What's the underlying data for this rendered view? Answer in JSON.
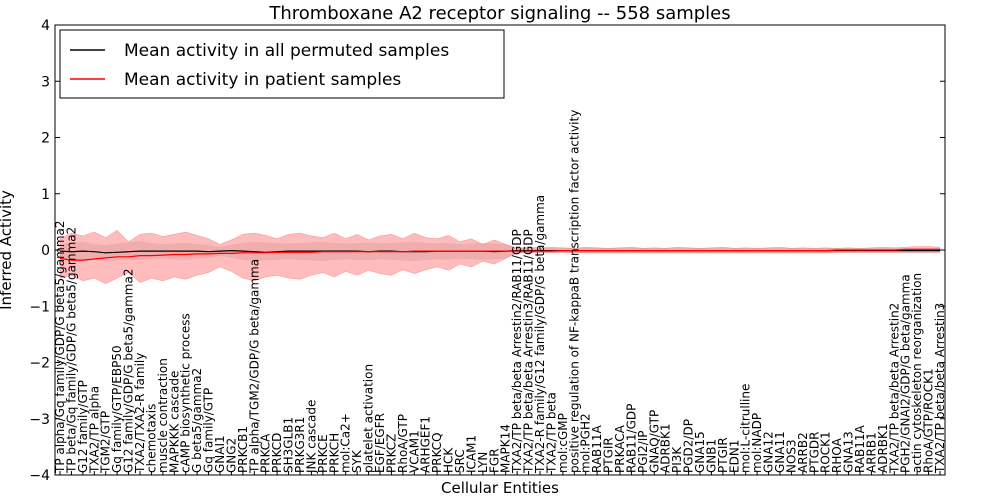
{
  "chart_data": {
    "type": "line",
    "title": "Thromboxane A2 receptor signaling -- 558 samples",
    "xlabel": "Cellular Entities",
    "ylabel": "Inferred Activity",
    "ylim": [
      -4,
      4
    ],
    "y_ticks": [
      -4,
      -3,
      -2,
      -1,
      0,
      1,
      2,
      3,
      4
    ],
    "grid": false,
    "legend_position": "top-left",
    "categories": [
      "TP alpha/Gq family/GDP/G beta5/gamma2",
      "TP beta/Gq family/GDP/G beta5/gamma2",
      "G12 family/GTP",
      "TXA2/TP alpha",
      "TGM2/GTP",
      "Gq family/GTP/EBP50",
      "G12 family/GDP/G beta5/gamma2",
      "TXA2/TXA2-R family",
      "chemotaxis",
      "muscle contraction",
      "MAPKKK cascade",
      "cAMP biosynthetic process",
      "G beta5/gamma2",
      "Gq family/GTP",
      "GNAI1",
      "GNG2",
      "PRKCB1",
      "TP alpha/TGM2/GDP/G beta/gamma",
      "PRKCA",
      "PRKCD",
      "SH3GLB1",
      "PRKG3R1",
      "JNK cascade",
      "PRKCE",
      "PRKCH",
      "mol:Ca2+",
      "SYK",
      "platelet activation",
      "EGF/EGFR",
      "PRKCZ",
      "RhoA/GTP",
      "VCAM1",
      "ARHGEF1",
      "PRKCQ",
      "HCK",
      "SRC",
      "ICAM1",
      "LYN",
      "FGR",
      "MAPK14",
      "TXA2/TP beta/beta Arrestin2/RAB11/GDP",
      "TXA2/TP beta/beta Arrestin3/RAB11/GDP",
      "TXA2-R family/G12 family/GDP/G beta/gamma",
      "TXA2/TP beta",
      "mol:cGMP",
      "positive regulation of NF-kappaB transcription factor activity",
      "mol:PGH2",
      "RAB11A",
      "PTGIR",
      "PRKACA",
      "RAB11/GDP",
      "PGI2/IP",
      "GNAQ/GTP",
      "ADRBK1",
      "PI3K",
      "PGD2/DP",
      "GNA15",
      "GNB1",
      "PTGIR",
      "EDN1",
      "mol:L-citrulline",
      "mol:NADP",
      "GNA12",
      "GNA11",
      "NOS3",
      "ARRB2",
      "PTGDR",
      "ROCK1",
      "RHOA",
      "GNA13",
      "RAB11A",
      "ARRB1",
      "ADRBK1",
      "TXA2/TP beta/beta Arrestin2",
      "PGH2/GNAI2/GDP/G beta/gamma",
      "actin cytoskeleton reorganization",
      "RhoA/GTP/ROCK1",
      "TXA2/TP beta/beta Arrestin3"
    ],
    "series": [
      {
        "name": "Mean activity in all permuted samples",
        "color": "#000000",
        "values": [
          -0.02,
          -0.03,
          -0.02,
          -0.03,
          -0.05,
          -0.04,
          -0.03,
          -0.02,
          -0.02,
          -0.02,
          -0.02,
          -0.02,
          -0.02,
          -0.03,
          -0.02,
          -0.01,
          -0.02,
          -0.03,
          -0.04,
          -0.03,
          -0.02,
          -0.02,
          -0.02,
          -0.02,
          -0.02,
          -0.02,
          -0.02,
          -0.03,
          -0.02,
          -0.02,
          -0.03,
          -0.03,
          -0.03,
          -0.02,
          -0.02,
          -0.02,
          -0.02,
          -0.02,
          -0.03,
          -0.02,
          -0.01,
          -0.01,
          -0.01,
          -0.01,
          -0.01,
          -0.01,
          -0.01,
          -0.01,
          -0.01,
          -0.01,
          -0.01,
          -0.01,
          -0.01,
          -0.01,
          -0.01,
          -0.01,
          -0.01,
          -0.01,
          -0.01,
          -0.01,
          -0.01,
          -0.01,
          -0.01,
          -0.01,
          -0.01,
          -0.01,
          -0.01,
          -0.01,
          -0.01,
          -0.01,
          -0.01,
          -0.01,
          -0.01,
          -0.01,
          -0.01,
          -0.01,
          -0.01,
          -0.01
        ],
        "upper": [
          0.1,
          0.12,
          0.14,
          0.1,
          0.08,
          0.11,
          0.13,
          0.15,
          0.12,
          0.1,
          0.11,
          0.12,
          0.1,
          0.08,
          0.05,
          0.09,
          0.12,
          0.14,
          0.13,
          0.12,
          0.11,
          0.12,
          0.13,
          0.14,
          0.12,
          0.11,
          0.12,
          0.13,
          0.11,
          0.12,
          0.13,
          0.14,
          0.12,
          0.11,
          0.12,
          0.1,
          0.11,
          0.12,
          0.11,
          0.1,
          0.03,
          0.03,
          0.03,
          0.03,
          0.03,
          0.03,
          0.03,
          0.03,
          0.03,
          0.03,
          0.03,
          0.03,
          0.03,
          0.03,
          0.03,
          0.03,
          0.03,
          0.03,
          0.03,
          0.03,
          0.03,
          0.03,
          0.03,
          0.03,
          0.03,
          0.03,
          0.03,
          0.03,
          0.03,
          0.03,
          0.03,
          0.03,
          0.03,
          0.03,
          0.03,
          0.03,
          0.03,
          0.03
        ],
        "lower": [
          -0.15,
          -0.18,
          -0.2,
          -0.17,
          -0.19,
          -0.18,
          -0.17,
          -0.18,
          -0.16,
          -0.15,
          -0.16,
          -0.17,
          -0.15,
          -0.14,
          -0.1,
          -0.13,
          -0.17,
          -0.19,
          -0.18,
          -0.17,
          -0.16,
          -0.17,
          -0.18,
          -0.19,
          -0.17,
          -0.16,
          -0.17,
          -0.18,
          -0.16,
          -0.17,
          -0.18,
          -0.19,
          -0.17,
          -0.16,
          -0.17,
          -0.15,
          -0.16,
          -0.17,
          -0.16,
          -0.15,
          -0.05,
          -0.05,
          -0.05,
          -0.05,
          -0.05,
          -0.05,
          -0.05,
          -0.05,
          -0.05,
          -0.05,
          -0.05,
          -0.05,
          -0.05,
          -0.05,
          -0.05,
          -0.05,
          -0.05,
          -0.05,
          -0.05,
          -0.05,
          -0.05,
          -0.05,
          -0.05,
          -0.05,
          -0.05,
          -0.05,
          -0.05,
          -0.05,
          -0.05,
          -0.05,
          -0.05,
          -0.05,
          -0.05,
          -0.05,
          -0.05,
          -0.05,
          -0.05,
          -0.05
        ]
      },
      {
        "name": "Mean activity in patient samples",
        "color": "#ff0000",
        "values": [
          -0.15,
          -0.18,
          -0.18,
          -0.16,
          -0.14,
          -0.12,
          -0.12,
          -0.1,
          -0.1,
          -0.09,
          -0.08,
          -0.08,
          -0.07,
          -0.07,
          -0.06,
          -0.06,
          -0.05,
          -0.05,
          -0.05,
          -0.04,
          -0.04,
          -0.04,
          -0.04,
          -0.03,
          -0.03,
          -0.03,
          -0.03,
          -0.03,
          -0.03,
          -0.03,
          -0.03,
          -0.02,
          -0.02,
          -0.02,
          -0.02,
          -0.02,
          -0.02,
          -0.02,
          -0.02,
          -0.02,
          -0.02,
          -0.02,
          -0.02,
          -0.02,
          -0.01,
          -0.01,
          -0.01,
          -0.01,
          -0.01,
          -0.01,
          -0.01,
          -0.01,
          -0.01,
          -0.01,
          -0.01,
          -0.01,
          -0.01,
          -0.01,
          -0.01,
          -0.01,
          -0.01,
          -0.01,
          -0.01,
          -0.01,
          -0.01,
          -0.01,
          -0.01,
          -0.01,
          0.0,
          0.0,
          0.0,
          0.0,
          0.0,
          0.0,
          0.01,
          0.01,
          0.01,
          0.01
        ],
        "upper": [
          0.2,
          0.3,
          0.25,
          0.32,
          0.22,
          0.35,
          0.15,
          0.28,
          0.3,
          0.24,
          0.28,
          0.32,
          0.26,
          0.2,
          0.1,
          0.18,
          0.28,
          0.3,
          0.26,
          0.2,
          0.28,
          0.3,
          0.25,
          0.22,
          0.3,
          0.2,
          0.28,
          0.18,
          0.25,
          0.28,
          0.2,
          0.3,
          0.22,
          0.2,
          0.26,
          0.15,
          0.2,
          0.1,
          0.18,
          0.1,
          0.03,
          0.05,
          0.04,
          0.05,
          0.04,
          0.03,
          0.05,
          0.04,
          0.03,
          0.04,
          0.05,
          0.03,
          0.04,
          0.03,
          0.05,
          0.04,
          0.03,
          0.04,
          0.05,
          0.03,
          0.04,
          0.03,
          0.04,
          0.05,
          0.03,
          0.04,
          0.03,
          0.04,
          0.03,
          0.04,
          0.03,
          0.04,
          0.05,
          0.04,
          0.05,
          0.06,
          0.06,
          0.05
        ],
        "lower": [
          -0.5,
          -0.45,
          -0.55,
          -0.5,
          -0.6,
          -0.5,
          -0.4,
          -0.58,
          -0.5,
          -0.55,
          -0.48,
          -0.52,
          -0.45,
          -0.4,
          -0.3,
          -0.38,
          -0.5,
          -0.55,
          -0.48,
          -0.45,
          -0.5,
          -0.52,
          -0.45,
          -0.4,
          -0.48,
          -0.38,
          -0.45,
          -0.36,
          -0.42,
          -0.45,
          -0.35,
          -0.42,
          -0.35,
          -0.3,
          -0.36,
          -0.25,
          -0.3,
          -0.2,
          -0.25,
          -0.15,
          -0.05,
          -0.05,
          -0.05,
          -0.05,
          -0.04,
          -0.05,
          -0.05,
          -0.05,
          -0.05,
          -0.05,
          -0.05,
          -0.05,
          -0.05,
          -0.05,
          -0.05,
          -0.05,
          -0.05,
          -0.05,
          -0.05,
          -0.05,
          -0.05,
          -0.05,
          -0.05,
          -0.05,
          -0.05,
          -0.05,
          -0.05,
          -0.05,
          -0.04,
          -0.04,
          -0.04,
          -0.04,
          -0.04,
          -0.04,
          -0.04,
          -0.04,
          -0.04,
          -0.04
        ]
      }
    ]
  }
}
